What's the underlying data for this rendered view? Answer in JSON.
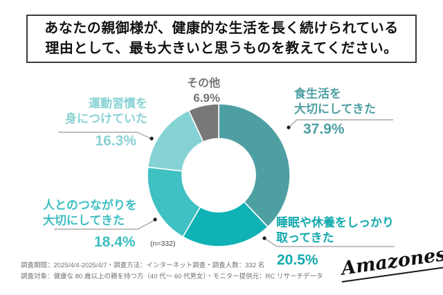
{
  "title": {
    "line1": "あなたの親御様が、健康的な生活を長く続けられている",
    "line2": "理由として、最も大きいと思うものを教えてください。"
  },
  "chart_data": {
    "type": "pie",
    "title": "あなたの親御様が、健康的な生活を長く続けられている理由として、最も大きいと思うものを教えてください。",
    "categories": [
      "食生活を大切にしてきた",
      "睡眠や休養をしっかり取ってきた",
      "人とのつながりを大切にしてきた",
      "運動習慣を身につけていた",
      "その他"
    ],
    "values": [
      37.9,
      20.5,
      18.4,
      16.3,
      6.9
    ],
    "colors": [
      "#4d9fa2",
      "#0fb2b5",
      "#3fc0c2",
      "#85d2d4",
      "#787878"
    ],
    "donut": true,
    "start_angle_deg": -90,
    "direction": "clockwise",
    "center_note": "(n=332)",
    "legend_position": "around-labels"
  },
  "slices": [
    {
      "label": "食生活を\n大切にしてきた",
      "pct": "37.9%",
      "label_color": "#4d9fa2"
    },
    {
      "label": "睡眠や休養をしっかり\n取ってきた",
      "pct": "20.5%",
      "label_color": "#12a9ad"
    },
    {
      "label": "人とのつながりを\n大切にしてきた",
      "pct": "18.4%",
      "label_color": "#3cbec1"
    },
    {
      "label": "運動習慣を\n身につけていた",
      "pct": "16.3%",
      "label_color": "#8ad2d4"
    },
    {
      "label": "その他",
      "pct": "6.9%",
      "label_color": "#757575"
    }
  ],
  "center_note": "(n=332)",
  "footer": {
    "line1": "調査期間：2025/4/4-2025/4/7・調査方法：インターネット調査・調査人数：332 名",
    "line2": "調査対象：健康な 80 歳以上の親を持つ方（40 代～ 60 代男女）・モニター提供元：RC リサーチデータ"
  },
  "logo": {
    "text": "Amazones"
  }
}
